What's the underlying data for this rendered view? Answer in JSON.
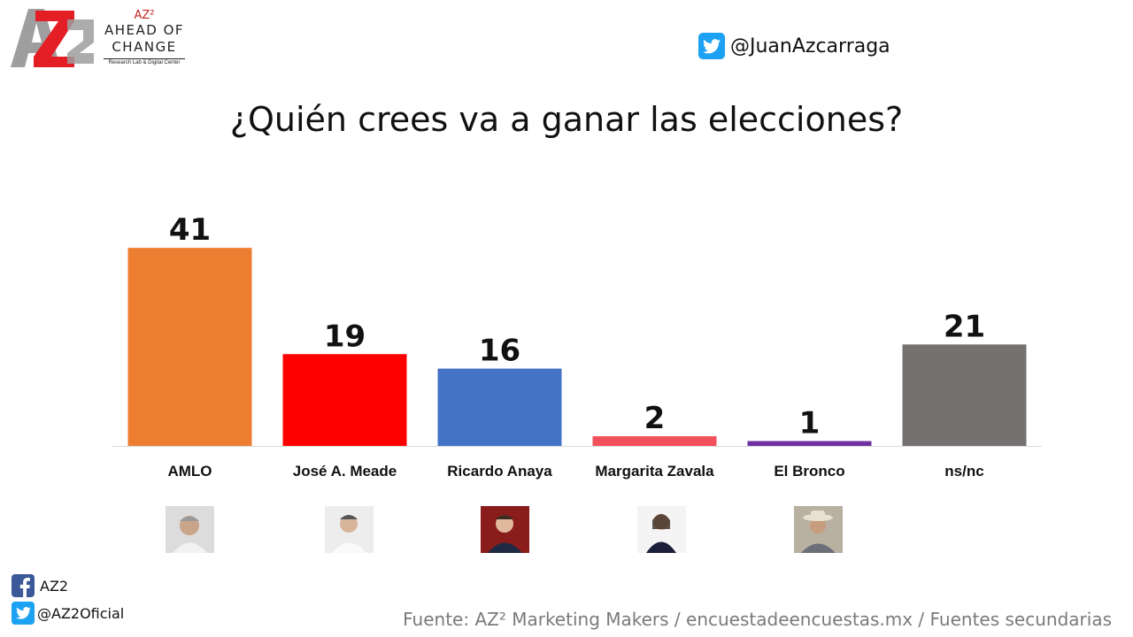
{
  "logo": {
    "az2": "AZ²",
    "line1": "AHEAD OF",
    "line2": "CHANGE",
    "sub": "Research Lab & Digital Center"
  },
  "twitter_top": {
    "handle": "@JuanAzcarraga"
  },
  "chart_data": {
    "type": "bar",
    "title": "¿Quién crees va a ganar las elecciones?",
    "categories": [
      "AMLO",
      "José A. Meade",
      "Ricardo Anaya",
      "Margarita Zavala",
      "El Bronco",
      "ns/nc"
    ],
    "values": [
      41,
      19,
      16,
      2,
      1,
      21
    ],
    "colors": [
      "#ed7d31",
      "#ff0000",
      "#4472c4",
      "#f2505a",
      "#7030a0",
      "#767171"
    ],
    "xlabel": "",
    "ylabel": "",
    "grid": false,
    "legend": "none"
  },
  "photos": [
    "AMLO",
    "José A. Meade",
    "Ricardo Anaya",
    "Margarita Zavala",
    "El Bronco"
  ],
  "social": {
    "facebook": "AZ2",
    "twitter": "@AZ2Oficial"
  },
  "source": "Fuente: AZ² Marketing Makers / encuestadeencuestas.mx / Fuentes secundarias",
  "icons": [
    "twitter-icon",
    "facebook-icon"
  ]
}
